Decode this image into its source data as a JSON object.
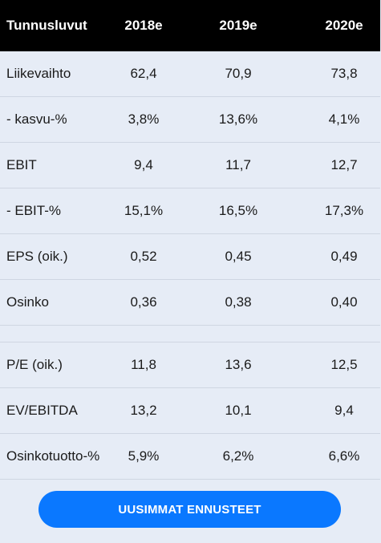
{
  "header": {
    "label": "Tunnusluvut",
    "years": [
      "2018e",
      "2019e",
      "2020e"
    ]
  },
  "rows_top": [
    {
      "label": "Liikevaihto",
      "values": [
        "62,4",
        "70,9",
        "73,8"
      ]
    },
    {
      "label": "- kasvu-%",
      "values": [
        "3,8%",
        "13,6%",
        "4,1%"
      ]
    },
    {
      "label": "EBIT",
      "values": [
        "9,4",
        "11,7",
        "12,7"
      ]
    },
    {
      "label": "- EBIT-%",
      "values": [
        "15,1%",
        "16,5%",
        "17,3%"
      ]
    },
    {
      "label": "EPS (oik.)",
      "values": [
        "0,52",
        "0,45",
        "0,49"
      ]
    },
    {
      "label": "Osinko",
      "values": [
        "0,36",
        "0,38",
        "0,40"
      ]
    }
  ],
  "rows_bottom": [
    {
      "label": "P/E (oik.)",
      "values": [
        "11,8",
        "13,6",
        "12,5"
      ]
    },
    {
      "label": "EV/EBITDA",
      "values": [
        "13,2",
        "10,1",
        "9,4"
      ]
    },
    {
      "label": "Osinkotuotto-%",
      "values": [
        "5,9%",
        "6,2%",
        "6,6%"
      ]
    }
  ],
  "cta": {
    "label": "UUSIMMAT ENNUSTEET"
  },
  "colors": {
    "header_bg": "#000000",
    "row_bg": "#e6ecf6",
    "button": "#0a78ff"
  }
}
